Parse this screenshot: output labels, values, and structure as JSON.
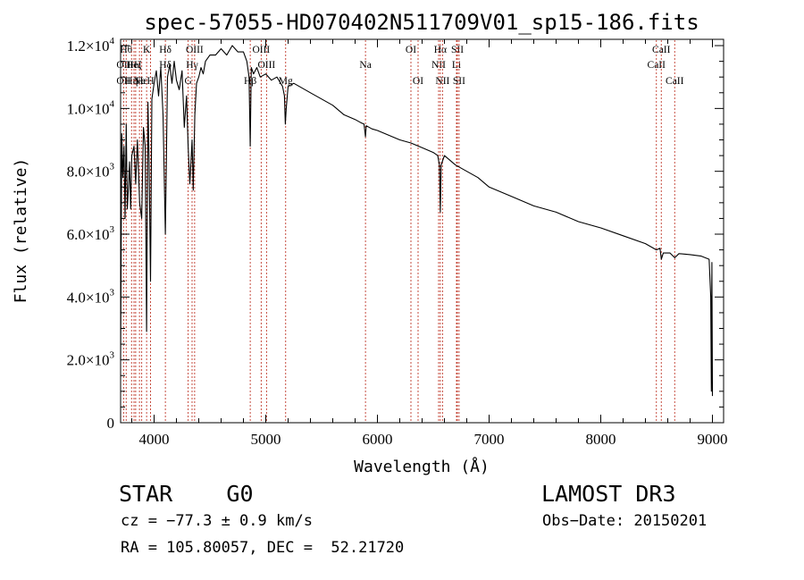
{
  "chart_data": {
    "type": "line",
    "title": "spec-57055-HD070402N511709V01_sp15-186.fits",
    "xlabel": "Wavelength (Å)",
    "ylabel": "Flux (relative)",
    "xlim": [
      3700,
      9100
    ],
    "ylim": [
      0,
      12200
    ],
    "grid": false,
    "xticks": [
      {
        "value": 4000,
        "label": "4000"
      },
      {
        "value": 5000,
        "label": "5000"
      },
      {
        "value": 6000,
        "label": "6000"
      },
      {
        "value": 7000,
        "label": "7000"
      },
      {
        "value": 8000,
        "label": "8000"
      },
      {
        "value": 9000,
        "label": "9000"
      }
    ],
    "yticks": [
      {
        "value": 0,
        "mant": "0",
        "exp": ""
      },
      {
        "value": 2000,
        "mant": "2.0×10",
        "exp": "3"
      },
      {
        "value": 4000,
        "mant": "4.0×10",
        "exp": "3"
      },
      {
        "value": 6000,
        "mant": "6.0×10",
        "exp": "3"
      },
      {
        "value": 8000,
        "mant": "8.0×10",
        "exp": "3"
      },
      {
        "value": 10000,
        "mant": "1.0×10",
        "exp": "4"
      },
      {
        "value": 12000,
        "mant": "1.2×10",
        "exp": "4"
      }
    ],
    "series": [
      {
        "name": "spectrum",
        "x": [
          3700,
          3710,
          3720,
          3730,
          3740,
          3750,
          3760,
          3770,
          3780,
          3790,
          3800,
          3820,
          3835,
          3850,
          3870,
          3889,
          3905,
          3920,
          3933,
          3945,
          3955,
          3968,
          3980,
          4000,
          4020,
          4040,
          4060,
          4080,
          4101,
          4120,
          4140,
          4160,
          4180,
          4200,
          4225,
          4250,
          4270,
          4290,
          4305,
          4320,
          4340,
          4350,
          4365,
          4380,
          4400,
          4420,
          4440,
          4460,
          4480,
          4500,
          4550,
          4600,
          4650,
          4700,
          4750,
          4800,
          4830,
          4850,
          4861,
          4870,
          4890,
          4920,
          4950,
          5000,
          5050,
          5100,
          5150,
          5167,
          5175,
          5183,
          5200,
          5250,
          5300,
          5400,
          5500,
          5600,
          5700,
          5800,
          5850,
          5880,
          5893,
          5900,
          5950,
          6000,
          6100,
          6200,
          6300,
          6400,
          6500,
          6540,
          6555,
          6563,
          6570,
          6600,
          6700,
          6800,
          6900,
          7000,
          7200,
          7400,
          7600,
          7800,
          8000,
          8200,
          8400,
          8498,
          8530,
          8542,
          8560,
          8620,
          8662,
          8700,
          8800,
          8900,
          8970,
          8985,
          8990,
          8995,
          9000
        ],
        "y": [
          2000,
          9200,
          7800,
          8800,
          6500,
          9500,
          6800,
          7500,
          8300,
          6800,
          8500,
          8800,
          7600,
          9000,
          7000,
          6500,
          9400,
          8800,
          2900,
          10200,
          8300,
          4500,
          10300,
          10800,
          11200,
          10400,
          11300,
          9800,
          6000,
          11000,
          11400,
          10800,
          11500,
          10900,
          10600,
          11200,
          9400,
          10400,
          8800,
          7600,
          9000,
          7400,
          9800,
          10800,
          11000,
          11300,
          11100,
          11500,
          11600,
          11700,
          11700,
          11900,
          11700,
          12000,
          11800,
          11800,
          11500,
          11000,
          8800,
          11300,
          11100,
          11300,
          11000,
          11100,
          10900,
          11000,
          10700,
          10400,
          9500,
          10000,
          10700,
          10800,
          10700,
          10500,
          10300,
          10100,
          9800,
          9650,
          9550,
          9500,
          9100,
          9450,
          9350,
          9300,
          9150,
          9000,
          8900,
          8750,
          8600,
          8500,
          8200,
          6700,
          8200,
          8500,
          8200,
          8000,
          7800,
          7500,
          7200,
          6900,
          6700,
          6400,
          6200,
          5950,
          5700,
          5500,
          5550,
          5200,
          5400,
          5400,
          5250,
          5380,
          5350,
          5300,
          5200,
          4000,
          1000,
          5100,
          850
        ]
      }
    ],
    "line_markers": [
      {
        "wavelength": 3727,
        "label": "OII",
        "row": 2
      },
      {
        "wavelength": 3727,
        "label": "OII",
        "row": 3
      },
      {
        "wavelength": 3750,
        "label": "Hθ",
        "row": 1
      },
      {
        "wavelength": 3798,
        "label": "Hη",
        "row": 3
      },
      {
        "wavelength": 3820,
        "label": "HeI",
        "row": 2
      },
      {
        "wavelength": 3835,
        "label": "Hζ",
        "row": 2
      },
      {
        "wavelength": 3869,
        "label": "Ne",
        "row": 3
      },
      {
        "wavelength": 3889,
        "label": "Hε",
        "row": 3
      },
      {
        "wavelength": 3933,
        "label": "K",
        "row": 1
      },
      {
        "wavelength": 3968,
        "label": "H",
        "row": 3
      },
      {
        "wavelength": 4101,
        "label": "Hδ",
        "row": 1
      },
      {
        "wavelength": 4101,
        "label": "Hδ",
        "row": 2
      },
      {
        "wavelength": 4305,
        "label": "G",
        "row": 3
      },
      {
        "wavelength": 4340,
        "label": "Hγ",
        "row": 2
      },
      {
        "wavelength": 4363,
        "label": "OIII",
        "row": 1
      },
      {
        "wavelength": 4861,
        "label": "Hβ",
        "row": 3
      },
      {
        "wavelength": 4959,
        "label": "OIII",
        "row": 1
      },
      {
        "wavelength": 5007,
        "label": "OIII",
        "row": 2
      },
      {
        "wavelength": 5178,
        "label": "Mg",
        "row": 3
      },
      {
        "wavelength": 5893,
        "label": "Na",
        "row": 2
      },
      {
        "wavelength": 6300,
        "label": "OI",
        "row": 1
      },
      {
        "wavelength": 6364,
        "label": "OI",
        "row": 3
      },
      {
        "wavelength": 6548,
        "label": "NII",
        "row": 2
      },
      {
        "wavelength": 6563,
        "label": "Hα",
        "row": 1
      },
      {
        "wavelength": 6583,
        "label": "NII",
        "row": 3
      },
      {
        "wavelength": 6708,
        "label": "Li",
        "row": 2
      },
      {
        "wavelength": 6716,
        "label": "SII",
        "row": 1
      },
      {
        "wavelength": 6731,
        "label": "SII",
        "row": 3
      },
      {
        "wavelength": 8498,
        "label": "CaII",
        "row": 2
      },
      {
        "wavelength": 8542,
        "label": "CaII",
        "row": 1
      },
      {
        "wavelength": 8662,
        "label": "CaII",
        "row": 3
      }
    ]
  },
  "info": {
    "object_class": "STAR    G0",
    "survey": "LAMOST DR3",
    "cz": "cz = −77.3 ± 0.9 km/s",
    "obs_date": "Obs−Date: 20150201",
    "radec": "RA = 105.80057, DEC =  52.21720"
  }
}
